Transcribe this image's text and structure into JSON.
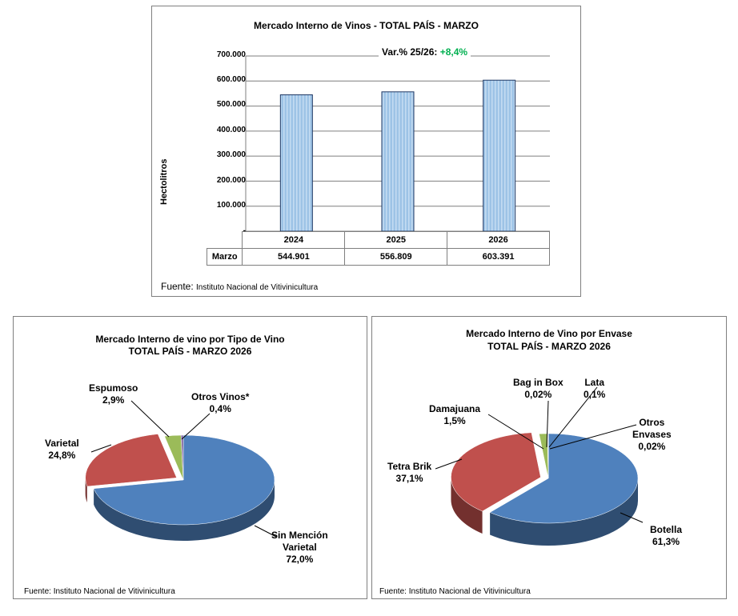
{
  "chart_data": [
    {
      "type": "bar",
      "title": "Mercado Interno de Vinos  - TOTAL PAÍS  -  MARZO",
      "ylabel": "Hectolitros",
      "ylim": [
        0,
        700000
      ],
      "yticks": [
        "700.000",
        "600.000",
        "500.000",
        "400.000",
        "300.000",
        "200.000",
        "100.000",
        "-"
      ],
      "categories": [
        "2024",
        "2025",
        "2026"
      ],
      "series": [
        {
          "name": "Marzo",
          "values": [
            544901,
            556809,
            603391
          ]
        }
      ],
      "table_values": [
        "544.901",
        "556.809",
        "603.391"
      ],
      "variation_label": "Var.% 25/26: ",
      "variation_value": "+8,4%",
      "source_label": "Fuente: ",
      "source_text": "Instituto Nacional de Vitivinicultura",
      "colors": {
        "bar": "#9dc3e6",
        "bar_border": "#1f3864"
      },
      "grid": true
    },
    {
      "type": "pie",
      "title_line1": "Mercado Interno de vino por Tipo de Vino",
      "title_line2": "TOTAL PAÍS - MARZO 2026",
      "slices": [
        {
          "label": "Sin Mención Varietal",
          "value": 72.0,
          "label_line1": "Sin Mención",
          "label_line2": "Varietal",
          "pct": "72,0%",
          "color": "#4f81bd"
        },
        {
          "label": "Varietal",
          "value": 24.8,
          "label_line1": "Varietal",
          "pct": "24,8%",
          "color": "#c0504d"
        },
        {
          "label": "Espumoso",
          "value": 2.9,
          "label_line1": "Espumoso",
          "pct": "2,9%",
          "color": "#9bbb59"
        },
        {
          "label": "Otros Vinos*",
          "value": 0.4,
          "label_line1": "Otros Vinos*",
          "pct": "0,4%",
          "color": "#8064a2"
        }
      ],
      "source_text": "Fuente: Instituto Nacional de Vitivinicultura"
    },
    {
      "type": "pie",
      "title_line1": "Mercado Interno de Vino por Envase",
      "title_line2": "TOTAL PAÍS -  MARZO 2026",
      "slices": [
        {
          "label": "Botella",
          "value": 61.3,
          "label_line1": "Botella",
          "pct": "61,3%",
          "color": "#4f81bd"
        },
        {
          "label": "Tetra Brik",
          "value": 37.1,
          "label_line1": "Tetra Brik",
          "pct": "37,1%",
          "color": "#c0504d"
        },
        {
          "label": "Damajuana",
          "value": 1.5,
          "label_line1": "Damajuana",
          "pct": "1,5%",
          "color": "#9bbb59"
        },
        {
          "label": "Bag in Box",
          "value": 0.02,
          "label_line1": "Bag in Box",
          "pct": "0,02%",
          "color": "#8064a2"
        },
        {
          "label": "Lata",
          "value": 0.1,
          "label_line1": "Lata",
          "pct": "0,1%",
          "color": "#4bacc6"
        },
        {
          "label": "Otros Envases",
          "value": 0.02,
          "label_line1": "Otros",
          "label_line2": "Envases",
          "pct": "0,02%",
          "color": "#f79646"
        }
      ],
      "source_text": "Fuente: Instituto Nacional de Vitivinicultura"
    }
  ]
}
